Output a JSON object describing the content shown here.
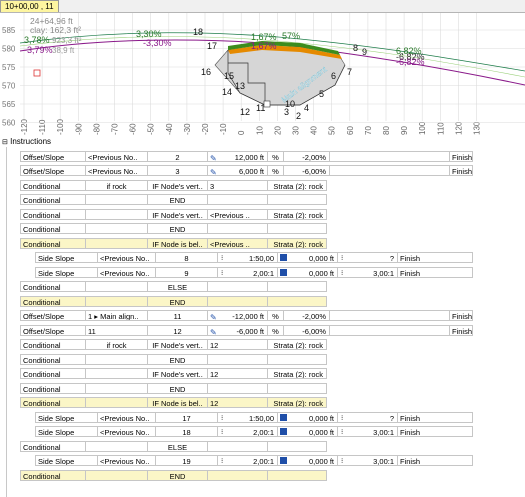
{
  "tab": {
    "label": "10+00,00 , 11"
  },
  "section": {
    "y_ticks": [
      "585",
      "580",
      "575",
      "570",
      "565",
      "560"
    ],
    "x_ticks": [
      "-120",
      "-110",
      "-100",
      "-90",
      "-80",
      "-70",
      "-60",
      "-50",
      "-40",
      "-30",
      "-20",
      "-10",
      "0",
      "10",
      "20",
      "30",
      "40",
      "50",
      "60",
      "70",
      "80",
      "90",
      "100",
      "110",
      "120",
      "130"
    ],
    "info_station": "24+64,96 ft",
    "info_area": "clay: 162,3 ft²",
    "overlay_line1": "3,78%",
    "overlay_line2": "-3,79%",
    "overlay_text1": "923,3 ft²",
    "overlay_text2": "38,9 ft",
    "left_grade_top": "3,30%",
    "left_grade_bot": "-3,30%",
    "center_grade_top": "1,67%",
    "center_grade_bot": "1,67%",
    "center_right_grade": "57%",
    "right_grade_top": "6,82%",
    "right_grade_mid": "-6,82%",
    "right_grade_bot": "-6,82%",
    "main_alignment_label": "Main alignment",
    "node_labels": [
      "18",
      "17",
      "16",
      "15",
      "14",
      "13",
      "12",
      "11",
      "10",
      "9",
      "8",
      "7",
      "6",
      "5",
      "4",
      "3",
      "2"
    ],
    "colors": {
      "green": "#3c8c1e",
      "orange": "#e58a00",
      "purple": "#8a1a8a",
      "gray_fill": "#d6d6d6",
      "grid": "#dcdcdc"
    }
  },
  "instructions": {
    "header": "Instructions",
    "rows": [
      {
        "col1": "Offset/Slope",
        "col2": "<Previous  No..",
        "col3": "2",
        "col4": "12,000 ft",
        "col5": "%",
        "col6": "-2,00%",
        "col7": "",
        "col8": "Finish",
        "yellow": false,
        "indent": 0
      },
      {
        "col1": "Offset/Slope",
        "col2": "<Previous  No..",
        "col3": "3",
        "col4": "6,000 ft",
        "col5": "%",
        "col6": "-6,00%",
        "col7": "",
        "col8": "Finish",
        "yellow": false,
        "indent": 0
      },
      {
        "col1": "Conditional",
        "col2": "if rock",
        "col3": "IF Node's vert..",
        "col4": "3",
        "col5": "Strata (2): rock",
        "yellow": false,
        "indent": 0
      },
      {
        "col1": "Conditional",
        "col2": "",
        "col3": "END",
        "col4": "",
        "col5": "",
        "yellow": false,
        "indent": 0
      },
      {
        "col1": "Conditional",
        "col2": "",
        "col3": "IF Node's vert..",
        "col4": "<Previous ..",
        "col5": "Strata (2): rock",
        "yellow": false,
        "indent": 0
      },
      {
        "col1": "Conditional",
        "col2": "",
        "col3": "END",
        "col4": "",
        "col5": "",
        "yellow": false,
        "indent": 0
      },
      {
        "col1": "Conditional",
        "col2": "",
        "col3": "IF Node is bel..",
        "col4": "<Previous ..",
        "col5": "Strata (2): rock",
        "yellow": true,
        "indent": 0
      },
      {
        "col1": "Side Slope",
        "col2": "<Previous  No..",
        "col3": "8",
        "col4": "1:50,00",
        "col5": "0,000 ft",
        "col6": "?",
        "col7": "Finish",
        "yellow": false,
        "indent": 1
      },
      {
        "col1": "Side Slope",
        "col2": "<Previous  No..",
        "col3": "9",
        "col4": "2,00:1",
        "col5": "0,000 ft",
        "col6": "3,00:1",
        "col7": "Finish",
        "yellow": false,
        "indent": 1
      },
      {
        "col1": "Conditional",
        "col2": "",
        "col3": "ELSE",
        "col4": "",
        "col5": "",
        "yellow": false,
        "indent": 0
      },
      {
        "col1": "Conditional",
        "col2": "",
        "col3": "END",
        "col4": "",
        "col5": "",
        "yellow": true,
        "indent": 0
      },
      {
        "col1": "Offset/Slope",
        "col2": "1 ▸ Main  align..",
        "col3": "11",
        "col4": "-12,000 ft",
        "col5": "%",
        "col6": "-2,00%",
        "col7": "",
        "col8": "Finish",
        "yellow": false,
        "indent": 0
      },
      {
        "col1": "Offset/Slope",
        "col2": "11",
        "col3": "12",
        "col4": "-6,000 ft",
        "col5": "%",
        "col6": "-6,00%",
        "col7": "",
        "col8": "Finish",
        "yellow": false,
        "indent": 0
      },
      {
        "col1": "Conditional",
        "col2": "if rock",
        "col3": "IF Node's vert..",
        "col4": "12",
        "col5": "Strata (2): rock",
        "yellow": false,
        "indent": 0
      },
      {
        "col1": "Conditional",
        "col2": "",
        "col3": "END",
        "col4": "",
        "col5": "",
        "yellow": false,
        "indent": 0
      },
      {
        "col1": "Conditional",
        "col2": "",
        "col3": "IF Node's vert..",
        "col4": "12",
        "col5": "Strata (2): rock",
        "yellow": false,
        "indent": 0
      },
      {
        "col1": "Conditional",
        "col2": "",
        "col3": "END",
        "col4": "",
        "col5": "",
        "yellow": false,
        "indent": 0
      },
      {
        "col1": "Conditional",
        "col2": "",
        "col3": "IF Node is bel..",
        "col4": "12",
        "col5": "Strata (2): rock",
        "yellow": true,
        "indent": 0
      },
      {
        "col1": "Side Slope",
        "col2": "<Previous  No..",
        "col3": "17",
        "col4": "1:50,00",
        "col5": "0,000 ft",
        "col6": "?",
        "col7": "Finish",
        "yellow": false,
        "indent": 1
      },
      {
        "col1": "Side Slope",
        "col2": "<Previous  No..",
        "col3": "18",
        "col4": "2,00:1",
        "col5": "0,000 ft",
        "col6": "3,00:1",
        "col7": "Finish",
        "yellow": false,
        "indent": 1
      },
      {
        "col1": "Conditional",
        "col2": "",
        "col3": "ELSE",
        "col4": "",
        "col5": "",
        "yellow": false,
        "indent": 0
      },
      {
        "col1": "Side Slope",
        "col2": "<Previous  No..",
        "col3": "19",
        "col4": "2,00:1",
        "col5": "0,000 ft",
        "col6": "3,00:1",
        "col7": "Finish",
        "yellow": false,
        "indent": 1
      },
      {
        "col1": "Conditional",
        "col2": "",
        "col3": "END",
        "col4": "",
        "col5": "",
        "yellow": true,
        "indent": 0
      }
    ]
  }
}
